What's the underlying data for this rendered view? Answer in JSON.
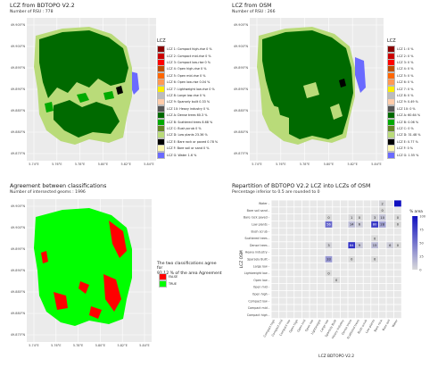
{
  "colors": {
    "map_bg": "#ebebeb",
    "grid": "#ffffff",
    "true_color": "#00ff00",
    "false_color": "#ff0000",
    "heat_low": "#d9d9d9",
    "heat_high": "#1010c0"
  },
  "lcz_palette": [
    "#8b0000",
    "#cc0000",
    "#ff0000",
    "#bf4d00",
    "#ff6600",
    "#ff9955",
    "#faee05",
    "#bcbcbc",
    "#ffccaa",
    "#555555",
    "#006a00",
    "#00aa00",
    "#648526",
    "#b9db79",
    "#000000",
    "#fbf7ae",
    "#6a6aff"
  ],
  "map1": {
    "title": "LCZ from BDTOPO V2.2",
    "subtitle": "Number of RSU : 778",
    "legend_title": "LCZ",
    "legend": [
      "LCZ 1: Compact high-rise 0 %",
      "LCZ 2: Compact mid-rise 0 %",
      "LCZ 3: Compact low-rise 0 %",
      "LCZ 4: Open high-rise 0 %",
      "LCZ 5: Open mid-rise 0 %",
      "LCZ 6: Open low-rise 0.04 %",
      "LCZ 7: Lightweight low-rise 0 %",
      "LCZ 8: Large low-rise 0 %",
      "LCZ 9: Sparsely built 0.33 %",
      "LCZ 10: Heavy industry 0 %",
      "LCZ A: Dense trees 60.3 %",
      "LCZ B: Scattered trees 8.68 %",
      "LCZ C: Bush,scrub 0 %",
      "LCZ D: Low plants 23.36 %",
      "LCZ E: Bare rock or paved 0.78 %",
      "LCZ F: Bare soil or sand 0 %",
      "LCZ G: Water 1.6 %"
    ]
  },
  "map2": {
    "title": "LCZ from OSM",
    "subtitle": "Number of RSU : 266",
    "legend_title": "LCZ",
    "legend": [
      "LCZ 1: 0 %",
      "LCZ 2: 0 %",
      "LCZ 3: 0 %",
      "LCZ 4: 0 %",
      "LCZ 5: 0 %",
      "LCZ 6: 0 %",
      "LCZ 7: 0 %",
      "LCZ 8: 0 %",
      "LCZ 9: 0.49 %",
      "LCZ 10: 0 %",
      "LCZ A: 60.64 %",
      "LCZ B: 0.06 %",
      "LCZ C: 0 %",
      "LCZ D: 31.48 %",
      "LCZ E: 0.77 %",
      "LCZ F: 0 %",
      "LCZ G: 1.55 %"
    ]
  },
  "map3": {
    "title": "Agreement between classifications",
    "subtitle": "Number of intersected geoms : 1996",
    "agree_text": [
      "The two classifications agree for",
      "92.12 % of the area Agreement"
    ],
    "legend": [
      "FALSE",
      "TRUE"
    ]
  },
  "map_axes": {
    "y_ticks": [
      "49.905°N",
      "49.900°N",
      "49.895°N",
      "49.890°N",
      "49.885°N",
      "49.880°N",
      "49.875°N"
    ],
    "x_ticks": [
      "5.74°E",
      "5.76°E",
      "5.78°E",
      "5.80°E",
      "5.82°E",
      "5.84°E"
    ]
  },
  "chart_data": {
    "type": "heatmap",
    "title": "Repartition of BDTOPO V2.2 LCZ into LCZs of OSM",
    "subtitle": "Percentage inferior to 0.5 are rounded to 0",
    "xlabel": "LCZ BDTOPO V2.2",
    "ylabel": "LCZ OSM",
    "legend_title": "% area",
    "legend_ticks": [
      "100",
      "75",
      "50",
      "25",
      "0"
    ],
    "x": [
      "Compact high",
      "Compact mid",
      "Compact low",
      "Open high",
      "Open mid",
      "Open low",
      "Lightweight low",
      "Large low",
      "Sparsely built",
      "Heavy industry",
      "Dense trees",
      "Scattered trees",
      "Bush scrub",
      "Low plants",
      "Bare rock paved",
      "Bare soil sand",
      "Water"
    ],
    "y": [
      "Water",
      "Bare soil sand",
      "Bare rock paved",
      "Low plants",
      "Bush scrub",
      "Scattered trees",
      "Dense trees",
      "Heavy industry",
      "Sparsely built",
      "Large low",
      "Lightweight low",
      "Open low",
      "Open mid",
      "Open high",
      "Compact low",
      "Compact mid",
      "Compact high"
    ],
    "y_labels": [
      "Water",
      "Bare soil sand",
      "Bare rock paved",
      "Low plants",
      "Bush scrub",
      "Scattered trees",
      "Dense trees",
      "Heavy industry",
      "Sparsely Built",
      "Large low",
      "Lightweight low",
      "Open low",
      "Open mid",
      "Open high",
      "Compact low",
      "Compact mid",
      "Compact high"
    ],
    "x_labels": [
      "Compact high",
      "Compact mid",
      "Compact low",
      "Open high",
      "Open mid",
      "Open low",
      "Lightweight",
      "Large low",
      "Sparsely Built",
      "Heavy industry",
      "Dense trees",
      "Scattered trees",
      "Bush scrub",
      "Low plants",
      "Bare rock",
      "Bare soil",
      "Water"
    ],
    "cells": [
      {
        "x": "Bare rock paved",
        "y": "Water",
        "value": 2
      },
      {
        "x": "Water",
        "y": "Water",
        "value": 100
      },
      {
        "x": "Bare rock paved",
        "y": "Bare soil sand",
        "value": 0
      },
      {
        "x": "Large low",
        "y": "Bare rock paved",
        "value": 0
      },
      {
        "x": "Dense trees",
        "y": "Bare rock paved",
        "value": 1
      },
      {
        "x": "Scattered trees",
        "y": "Bare rock paved",
        "value": 0
      },
      {
        "x": "Low plants",
        "y": "Bare rock paved",
        "value": 3
      },
      {
        "x": "Bare rock paved",
        "y": "Bare rock paved",
        "value": 10
      },
      {
        "x": "Water",
        "y": "Bare rock paved",
        "value": 0
      },
      {
        "x": "Large low",
        "y": "Low plants",
        "value": 56
      },
      {
        "x": "Dense trees",
        "y": "Low plants",
        "value": 14
      },
      {
        "x": "Scattered trees",
        "y": "Low plants",
        "value": 6
      },
      {
        "x": "Low plants",
        "y": "Low plants",
        "value": 80
      },
      {
        "x": "Bare rock paved",
        "y": "Low plants",
        "value": 28
      },
      {
        "x": "Water",
        "y": "Low plants",
        "value": 0
      },
      {
        "x": "Low plants",
        "y": "Scattered trees",
        "value": 0
      },
      {
        "x": "Large low",
        "y": "Dense trees",
        "value": 3
      },
      {
        "x": "Dense trees",
        "y": "Dense trees",
        "value": 84
      },
      {
        "x": "Scattered trees",
        "y": "Dense trees",
        "value": 9
      },
      {
        "x": "Low plants",
        "y": "Dense trees",
        "value": 15
      },
      {
        "x": "Bare soil sand",
        "y": "Dense trees",
        "value": 6
      },
      {
        "x": "Water",
        "y": "Dense trees",
        "value": 0
      },
      {
        "x": "Large low",
        "y": "Sparsely Built",
        "value": 33
      },
      {
        "x": "Dense trees",
        "y": "Sparsely Built",
        "value": 0
      },
      {
        "x": "Low plants",
        "y": "Sparsely Built",
        "value": 0
      },
      {
        "x": "Large low",
        "y": "Lightweight low",
        "value": 0
      },
      {
        "x": "Sparsely built",
        "y": "Open low",
        "value": 0
      }
    ]
  }
}
